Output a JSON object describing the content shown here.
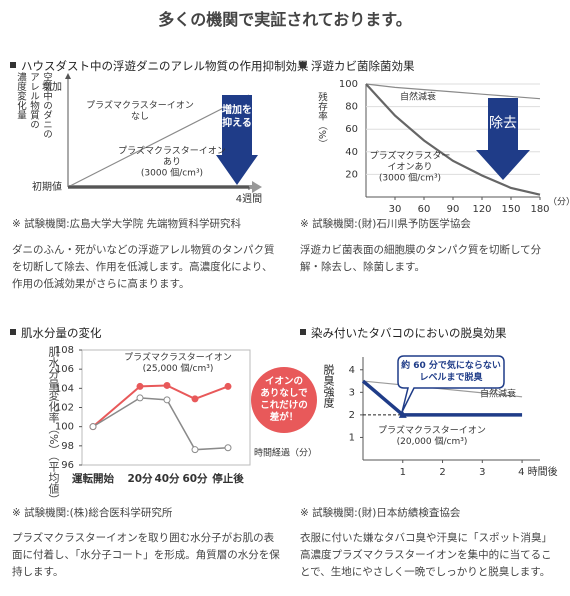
{
  "title": "多くの機関で実証されております。",
  "sections": [
    {
      "heading": "ハウスダスト中の浮遊ダニのアレル物質の作用抑制効果",
      "source": "※ 試験機関:広島大学大学院 先端物質科学研究科",
      "description": "ダニのふん・死がいなどの浮遊アレル物質のタンパク質を切断して除去、作用を低減します。高濃度化により、作用の低減効果がさらに高まります。"
    },
    {
      "heading": "浮遊カビ菌除菌効果",
      "source": "※ 試験機関:(財)石川県予防医学協会",
      "description": "浮遊カビ菌表面の細胞膜のタンパク質を切断して分解・除去し、除菌します。"
    },
    {
      "heading": "肌水分量の変化",
      "source": "※ 試験機関:(株)総合医科学研究所",
      "description": "プラズマクラスターイオンを取り囲む水分子がお肌の表面に付着し、「水分子コート」を形成。角質層の水分を保持します。"
    },
    {
      "heading": "染み付いたタバコのにおいの脱臭効果",
      "source": "※ 試験機関:(財)日本紡績検査協会",
      "description": "衣服に付いた嫌なタバコ臭や汗臭に「スポット消臭」高濃度プラズマクラスターイオンを集中的に当てることで、生地にやさしく一晩でしっかりと脱臭します。"
    }
  ],
  "chart_data": [
    {
      "type": "line",
      "ylabel": "空気中のダニの\nアレル物質の\n濃度変化量",
      "x": [
        0,
        4
      ],
      "xlim": [
        0,
        4.2
      ],
      "xticks": [
        {
          "value": 4,
          "label": "4週間"
        }
      ],
      "ylim": [
        0,
        100
      ],
      "yticks": [
        {
          "value": 0,
          "label": "初期値"
        },
        {
          "value": 100,
          "label": "増加"
        }
      ],
      "series": [
        {
          "name": "プラズマクラスターイオン\nなし",
          "color": "#8a8a8a",
          "values": [
            0,
            92
          ]
        },
        {
          "name": "プラズマクラスターイオン\nあり\n(3000 個/cm³)",
          "color": "#555555",
          "values": [
            0,
            0
          ]
        }
      ],
      "annotations": [
        "増加を\n抑える"
      ]
    },
    {
      "type": "line",
      "ylabel": "残存率（%）",
      "xlabel": "（分）",
      "x": [
        0,
        30,
        60,
        90,
        120,
        150,
        180
      ],
      "xlim": [
        0,
        180
      ],
      "xticks": [
        30,
        60,
        90,
        120,
        150,
        180
      ],
      "ylim": [
        0,
        100
      ],
      "yticks": [
        20,
        40,
        60,
        80,
        100
      ],
      "grid": true,
      "series": [
        {
          "name": "自然減衰",
          "color": "#8a8a8a",
          "values": [
            100,
            97,
            95,
            93,
            91,
            89,
            87
          ]
        },
        {
          "name": "プラズマクラスター\nイオンあり\n(3000 個/cm³)",
          "color": "#666666",
          "values": [
            100,
            72,
            50,
            32,
            19,
            8,
            2
          ]
        }
      ],
      "annotations": [
        "除去"
      ]
    },
    {
      "type": "line",
      "ylabel": "肌水分量変化率（%）（平均値）",
      "xlabel": "時間経過（分）",
      "categories": [
        "運転開始",
        "20分",
        "40分",
        "60分",
        "停止後"
      ],
      "ylim": [
        96,
        108
      ],
      "yticks": [
        96,
        98,
        100,
        102,
        104,
        106,
        108
      ],
      "series": [
        {
          "name": "プラズマクラスターイオン\n(25,000 個/cm³)",
          "color": "#e8595a",
          "values": [
            100,
            104.2,
            104.3,
            102.9,
            104.2
          ]
        },
        {
          "color": "#8a8a8a",
          "values": [
            100,
            103,
            102.8,
            97.6,
            97.8
          ]
        }
      ],
      "annotations": [
        "イオンの\nありなしで\nこれだけの\n差が！"
      ]
    },
    {
      "type": "line",
      "ylabel": "脱臭強度",
      "xlim": [
        0,
        4.3
      ],
      "xticks": [
        1,
        2,
        3,
        {
          "value": 4,
          "label": "4 時間後"
        }
      ],
      "ylim": [
        0,
        4.3
      ],
      "yticks": [
        1,
        2,
        3,
        4
      ],
      "series": [
        {
          "name": "自然減衰",
          "color": "#9a9a9a",
          "x": [
            0,
            4
          ],
          "values": [
            3.5,
            2.8
          ]
        },
        {
          "name": "プラズマクラスターイオン\n(20,000 個/cm³)",
          "color": "#1f3c88",
          "x": [
            0,
            1,
            4
          ],
          "values": [
            3.5,
            2,
            2
          ]
        }
      ],
      "annotations": [
        "約 60 分で気にならない\nレベルまで脱臭"
      ]
    }
  ]
}
